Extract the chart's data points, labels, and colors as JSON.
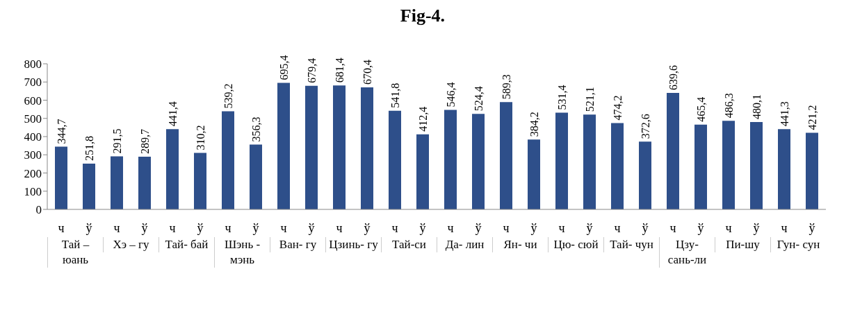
{
  "chart_data": {
    "type": "bar",
    "title": "Fig-4.",
    "categories": [
      "ч",
      "ў",
      "ч",
      "ў",
      "ч",
      "ў",
      "ч",
      "ў",
      "ч",
      "ў",
      "ч",
      "ў",
      "ч",
      "ў",
      "ч",
      "ў",
      "ч",
      "ў",
      "ч",
      "ў",
      "ч",
      "ў",
      "ч",
      "ў",
      "ч",
      "ў",
      "ч",
      "ў"
    ],
    "values": [
      344.7,
      251.8,
      291.5,
      289.7,
      441.4,
      310.2,
      539.2,
      356.3,
      695.4,
      679.4,
      681.4,
      670.4,
      541.8,
      412.4,
      546.4,
      524.4,
      589.3,
      384.2,
      531.4,
      521.1,
      474.2,
      372.6,
      639.6,
      465.4,
      486.3,
      480.1,
      441.3,
      421.2
    ],
    "value_labels": [
      "344,7",
      "251,8",
      "291,5",
      "289,7",
      "441,4",
      "310,2",
      "539,2",
      "356,3",
      "695,4",
      "679,4",
      "681,4",
      "670,4",
      "541,8",
      "412,4",
      "546,4",
      "524,4",
      "589,3",
      "384,2",
      "531,4",
      "521,1",
      "474,2",
      "372,6",
      "639,6",
      "465,4",
      "486,3",
      "480,1",
      "441,3",
      "421,2"
    ],
    "color": "#2e4f8a",
    "ylim": [
      0,
      800
    ],
    "yticks": [
      0,
      100,
      200,
      300,
      400,
      500,
      600,
      700,
      800
    ],
    "annotations": [
      "Тай – юань",
      "Хэ – гу",
      "Тай- бай",
      "Шэнь - мэнь",
      "Ван- гу",
      "Цзинь- гу",
      "Тай-си",
      "Да- лин",
      "Ян- чи",
      "Цю- сюй",
      "Тай- чун",
      "Цзу- сань-ли",
      "Пи-шу",
      "Гун- сун"
    ]
  }
}
